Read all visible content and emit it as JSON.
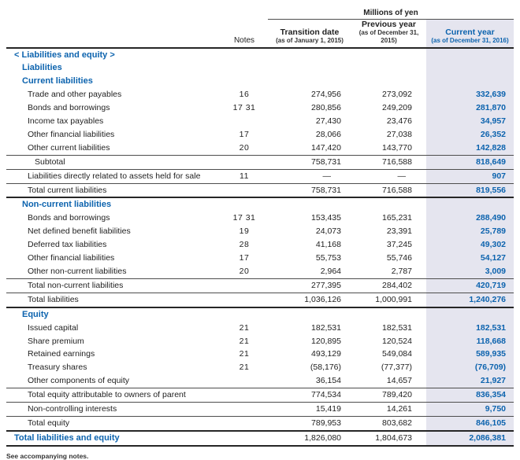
{
  "colors": {
    "blue": "#0c63ae",
    "highlight_bg": "#e5e5ef",
    "thin_rule": "#4d4d4d",
    "thick_rule": "#262626"
  },
  "header": {
    "units": "Millions of yen",
    "notes_label": "Notes",
    "columns": [
      {
        "key": "t",
        "title": "Transition date",
        "subtitle": "(as of January 1, 2015)",
        "highlight": false
      },
      {
        "key": "p",
        "title": "Previous year",
        "subtitle": "(as of December 31, 2015)",
        "highlight": false
      },
      {
        "key": "c",
        "title": "Current year",
        "subtitle": "(as of December 31, 2016)",
        "highlight": true
      }
    ]
  },
  "table": {
    "rows": [
      {
        "label": "< Liabilities and equity >",
        "indent": 0,
        "style": "heading",
        "border": "none",
        "notes": "",
        "t": "",
        "p": "",
        "c": ""
      },
      {
        "label": "Liabilities",
        "indent": 1,
        "style": "heading",
        "border": "none",
        "notes": "",
        "t": "",
        "p": "",
        "c": ""
      },
      {
        "label": "Current liabilities",
        "indent": 1,
        "style": "heading",
        "border": "none",
        "notes": "",
        "t": "",
        "p": "",
        "c": ""
      },
      {
        "label": "Trade and other payables",
        "indent": 2,
        "style": "item",
        "border": "none",
        "notes": "16",
        "t": "274,956",
        "p": "273,092",
        "c": "332,639"
      },
      {
        "label": "Bonds and borrowings",
        "indent": 2,
        "style": "item",
        "border": "none",
        "notes": "17 31",
        "t": "280,856",
        "p": "249,209",
        "c": "281,870"
      },
      {
        "label": "Income tax payables",
        "indent": 2,
        "style": "item",
        "border": "none",
        "notes": "",
        "t": "27,430",
        "p": "23,476",
        "c": "34,957"
      },
      {
        "label": "Other financial liabilities",
        "indent": 2,
        "style": "item",
        "border": "none",
        "notes": "17",
        "t": "28,066",
        "p": "27,038",
        "c": "26,352"
      },
      {
        "label": "Other current liabilities",
        "indent": 2,
        "style": "item",
        "border": "none",
        "notes": "20",
        "t": "147,420",
        "p": "143,770",
        "c": "142,828"
      },
      {
        "label": "Subtotal",
        "indent": 3,
        "style": "item",
        "border": "thin",
        "notes": "",
        "t": "758,731",
        "p": "716,588",
        "c": "818,649"
      },
      {
        "label": "Liabilities directly related to assets held for sale",
        "indent": 2,
        "style": "item",
        "border": "thin",
        "notes": "11",
        "t": "—",
        "p": "—",
        "c": "907"
      },
      {
        "label": "Total current liabilities",
        "indent": 2,
        "style": "item",
        "border": "thin",
        "notes": "",
        "t": "758,731",
        "p": "716,588",
        "c": "819,556"
      },
      {
        "label": "Non-current liabilities",
        "indent": 1,
        "style": "heading",
        "border": "thick",
        "notes": "",
        "t": "",
        "p": "",
        "c": ""
      },
      {
        "label": "Bonds and borrowings",
        "indent": 2,
        "style": "item",
        "border": "none",
        "notes": "17 31",
        "t": "153,435",
        "p": "165,231",
        "c": "288,490"
      },
      {
        "label": "Net defined benefit liabilities",
        "indent": 2,
        "style": "item",
        "border": "none",
        "notes": "19",
        "t": "24,073",
        "p": "23,391",
        "c": "25,789"
      },
      {
        "label": "Deferred tax liabilities",
        "indent": 2,
        "style": "item",
        "border": "none",
        "notes": "28",
        "t": "41,168",
        "p": "37,245",
        "c": "49,302"
      },
      {
        "label": "Other financial liabilities",
        "indent": 2,
        "style": "item",
        "border": "none",
        "notes": "17",
        "t": "55,753",
        "p": "55,746",
        "c": "54,127"
      },
      {
        "label": "Other non-current liabilities",
        "indent": 2,
        "style": "item",
        "border": "none",
        "notes": "20",
        "t": "2,964",
        "p": "2,787",
        "c": "3,009"
      },
      {
        "label": "Total non-current liabilities",
        "indent": 2,
        "style": "item",
        "border": "thin",
        "notes": "",
        "t": "277,395",
        "p": "284,402",
        "c": "420,719"
      },
      {
        "label": "Total liabilities",
        "indent": 2,
        "style": "item",
        "border": "thin",
        "notes": "",
        "t": "1,036,126",
        "p": "1,000,991",
        "c": "1,240,276"
      },
      {
        "label": "Equity",
        "indent": 1,
        "style": "heading",
        "border": "thick",
        "notes": "",
        "t": "",
        "p": "",
        "c": ""
      },
      {
        "label": "Issued capital",
        "indent": 2,
        "style": "item",
        "border": "none",
        "notes": "21",
        "t": "182,531",
        "p": "182,531",
        "c": "182,531"
      },
      {
        "label": "Share premium",
        "indent": 2,
        "style": "item",
        "border": "none",
        "notes": "21",
        "t": "120,895",
        "p": "120,524",
        "c": "118,668"
      },
      {
        "label": "Retained earnings",
        "indent": 2,
        "style": "item",
        "border": "none",
        "notes": "21",
        "t": "493,129",
        "p": "549,084",
        "c": "589,935"
      },
      {
        "label": "Treasury shares",
        "indent": 2,
        "style": "item",
        "border": "none",
        "notes": "21",
        "t": "(58,176)",
        "p": "(77,377)",
        "c": "(76,709)"
      },
      {
        "label": "Other components of equity",
        "indent": 2,
        "style": "item",
        "border": "none",
        "notes": "",
        "t": "36,154",
        "p": "14,657",
        "c": "21,927"
      },
      {
        "label": "Total equity attributable to owners of parent",
        "indent": 2,
        "style": "item",
        "border": "thin",
        "notes": "",
        "t": "774,534",
        "p": "789,420",
        "c": "836,354"
      },
      {
        "label": "Non-controlling interests",
        "indent": 2,
        "style": "item",
        "border": "thin",
        "notes": "",
        "t": "15,419",
        "p": "14,261",
        "c": "9,750"
      },
      {
        "label": "Total equity",
        "indent": 2,
        "style": "item",
        "border": "thin",
        "notes": "",
        "t": "789,953",
        "p": "803,682",
        "c": "846,105"
      },
      {
        "label": "Total liabilities and equity",
        "indent": 0,
        "style": "heading",
        "border": "thick",
        "notes": "",
        "t": "1,826,080",
        "p": "1,804,673",
        "c": "2,086,381"
      }
    ]
  },
  "footnote": "See accompanying notes."
}
